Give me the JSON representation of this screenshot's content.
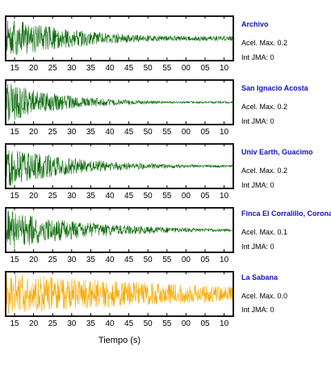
{
  "chart_data": {
    "type": "line",
    "xlabel": "Tiempo (s)",
    "x_tick_labels": [
      "15",
      "20",
      "25",
      "30",
      "35",
      "40",
      "45",
      "50",
      "55",
      "00",
      "05",
      "10"
    ],
    "panels": [
      {
        "name": "Archivo",
        "pga_label": "Acel. Max. 0.2",
        "jma_label": "Int JMA: 0",
        "color": "#0a6b0a",
        "amplitude": 0.2,
        "decay": 3.0,
        "floor": 0.12
      },
      {
        "name": "San Ignacio Acosta",
        "pga_label": "Acel. Max. 0.2",
        "jma_label": "Int JMA: 0",
        "color": "#0a6b0a",
        "amplitude": 0.2,
        "decay": 4.0,
        "floor": 0.05
      },
      {
        "name": "Univ Earth, Guacimo",
        "pga_label": "Acel. Max. 0.2",
        "jma_label": "Int JMA: 0",
        "color": "#0a6b0a",
        "amplitude": 0.2,
        "decay": 3.2,
        "floor": 0.06
      },
      {
        "name": "Finca El Corralillo, Coronado",
        "pga_label": "Acel. Max. 0.1",
        "jma_label": "Int JMA: 0",
        "color": "#0a6b0a",
        "amplitude": 0.1,
        "decay": 2.8,
        "floor": 0.07
      },
      {
        "name": "La Sabana",
        "pga_label": "Acel. Max. 0.0",
        "jma_label": "Int JMA: 0",
        "color": "#f5a800",
        "amplitude": 0.0,
        "decay": 1.0,
        "floor": 0.35
      }
    ]
  }
}
